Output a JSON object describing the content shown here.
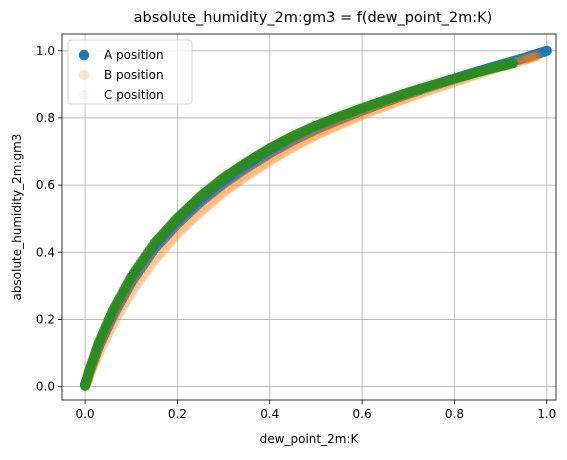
{
  "chart_data": {
    "type": "scatter",
    "title": "absolute_humidity_2m:gm3 = f(dew_point_2m:K)",
    "xlabel": "dew_point_2m:K",
    "ylabel": "absolute_humidity_2m:gm3",
    "xlim": [
      -0.05,
      1.02
    ],
    "ylim": [
      -0.04,
      1.05
    ],
    "x_ticks": [
      0.0,
      0.2,
      0.4,
      0.6,
      0.8,
      1.0
    ],
    "x_tick_labels": [
      "0.0",
      "0.2",
      "0.4",
      "0.6",
      "0.8",
      "1.0"
    ],
    "y_ticks": [
      0.0,
      0.2,
      0.4,
      0.6,
      0.8,
      1.0
    ],
    "y_tick_labels": [
      "0.0",
      "0.2",
      "0.4",
      "0.6",
      "0.8",
      "1.0"
    ],
    "grid": true,
    "legend_position": "top-left",
    "series": [
      {
        "name": "A position",
        "color": "#1f77b4",
        "opacity": 1.0,
        "points": [
          [
            0.0,
            0.005
          ],
          [
            0.01,
            0.045
          ],
          [
            0.03,
            0.12
          ],
          [
            0.06,
            0.21
          ],
          [
            0.1,
            0.31
          ],
          [
            0.15,
            0.41
          ],
          [
            0.2,
            0.485
          ],
          [
            0.25,
            0.55
          ],
          [
            0.3,
            0.605
          ],
          [
            0.35,
            0.652
          ],
          [
            0.4,
            0.695
          ],
          [
            0.45,
            0.733
          ],
          [
            0.5,
            0.766
          ],
          [
            0.55,
            0.795
          ],
          [
            0.6,
            0.822
          ],
          [
            0.65,
            0.848
          ],
          [
            0.7,
            0.872
          ],
          [
            0.75,
            0.895
          ],
          [
            0.8,
            0.917
          ],
          [
            0.85,
            0.938
          ],
          [
            0.9,
            0.958
          ],
          [
            0.95,
            0.978
          ],
          [
            1.0,
            1.0
          ]
        ]
      },
      {
        "name": "B position",
        "color": "#ff7f0e",
        "opacity": 0.2,
        "points": [
          [
            0.0,
            0.0
          ],
          [
            0.01,
            0.035
          ],
          [
            0.03,
            0.1
          ],
          [
            0.06,
            0.185
          ],
          [
            0.1,
            0.28
          ],
          [
            0.15,
            0.375
          ],
          [
            0.2,
            0.455
          ],
          [
            0.25,
            0.52
          ],
          [
            0.3,
            0.578
          ],
          [
            0.35,
            0.627
          ],
          [
            0.4,
            0.672
          ],
          [
            0.45,
            0.712
          ],
          [
            0.5,
            0.748
          ],
          [
            0.55,
            0.779
          ],
          [
            0.6,
            0.808
          ],
          [
            0.65,
            0.835
          ],
          [
            0.7,
            0.86
          ],
          [
            0.75,
            0.884
          ],
          [
            0.8,
            0.907
          ],
          [
            0.85,
            0.93
          ],
          [
            0.9,
            0.952
          ],
          [
            0.95,
            0.972
          ],
          [
            0.98,
            0.985
          ]
        ]
      },
      {
        "name": "C position",
        "color": "#2ca02c",
        "opacity": 0.03,
        "points": [
          [
            0.0,
            0.01
          ],
          [
            0.01,
            0.06
          ],
          [
            0.03,
            0.14
          ],
          [
            0.06,
            0.235
          ],
          [
            0.1,
            0.335
          ],
          [
            0.15,
            0.435
          ],
          [
            0.2,
            0.51
          ],
          [
            0.25,
            0.575
          ],
          [
            0.3,
            0.63
          ],
          [
            0.35,
            0.676
          ],
          [
            0.4,
            0.718
          ],
          [
            0.45,
            0.754
          ],
          [
            0.5,
            0.785
          ],
          [
            0.55,
            0.812
          ],
          [
            0.6,
            0.837
          ],
          [
            0.65,
            0.861
          ],
          [
            0.7,
            0.884
          ],
          [
            0.75,
            0.905
          ],
          [
            0.8,
            0.925
          ],
          [
            0.85,
            0.944
          ],
          [
            0.9,
            0.962
          ],
          [
            0.93,
            0.972
          ]
        ]
      }
    ]
  }
}
